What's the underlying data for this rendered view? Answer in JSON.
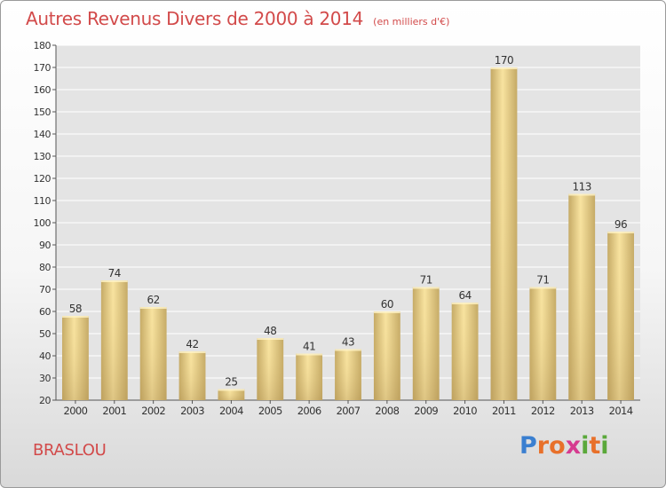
{
  "chart_data": {
    "type": "bar",
    "title": "Autres Revenus Divers de 2000 à 2014",
    "subtitle": "(en milliers d'€)",
    "categories": [
      "2000",
      "2001",
      "2002",
      "2003",
      "2004",
      "2005",
      "2006",
      "2007",
      "2008",
      "2009",
      "2010",
      "2011",
      "2012",
      "2013",
      "2014"
    ],
    "values": [
      58,
      74,
      62,
      42,
      25,
      48,
      41,
      43,
      60,
      71,
      64,
      170,
      71,
      113,
      96
    ],
    "ylim": [
      20,
      180
    ],
    "yticks": [
      20,
      30,
      40,
      50,
      60,
      70,
      80,
      90,
      100,
      110,
      120,
      130,
      140,
      150,
      160,
      170,
      180
    ],
    "grid": true,
    "legend": "none",
    "colors": {
      "bar_light": "#f8e3a0",
      "bar_dark": "#c4a965",
      "title": "#d24a4a",
      "grid": "#ffffff",
      "plot_bg": "#e4e4e4"
    }
  },
  "footer": {
    "commune": "BRASLOU",
    "brand_letters": [
      "P",
      "r",
      "o",
      "x",
      "i",
      "t",
      "i"
    ],
    "brand_colors": [
      "#3a7fd0",
      "#e8702a",
      "#e8702a",
      "#d63b8f",
      "#5aa83a",
      "#e8702a",
      "#5aa83a"
    ]
  }
}
